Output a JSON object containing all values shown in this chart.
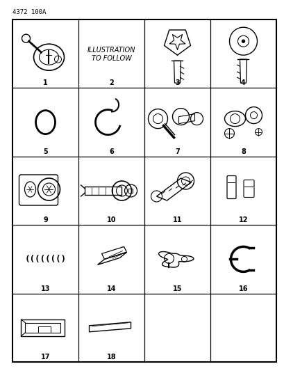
{
  "title": "4372 100A",
  "bg_color": "#ffffff",
  "fig_width": 4.1,
  "fig_height": 5.33,
  "dpi": 100,
  "placeholder_text": [
    "ILLUSTRATION",
    "TO FOLLOW"
  ],
  "cell_labels": [
    {
      "num": "1",
      "row": 0,
      "col": 0
    },
    {
      "num": "2",
      "row": 0,
      "col": 1
    },
    {
      "num": "3",
      "row": 0,
      "col": 2
    },
    {
      "num": "4",
      "row": 0,
      "col": 3
    },
    {
      "num": "5",
      "row": 1,
      "col": 0
    },
    {
      "num": "6",
      "row": 1,
      "col": 1
    },
    {
      "num": "7",
      "row": 1,
      "col": 2
    },
    {
      "num": "8",
      "row": 1,
      "col": 3
    },
    {
      "num": "9",
      "row": 2,
      "col": 0
    },
    {
      "num": "10",
      "row": 2,
      "col": 1
    },
    {
      "num": "11",
      "row": 2,
      "col": 2
    },
    {
      "num": "12",
      "row": 2,
      "col": 3
    },
    {
      "num": "13",
      "row": 3,
      "col": 0
    },
    {
      "num": "14",
      "row": 3,
      "col": 1
    },
    {
      "num": "15",
      "row": 3,
      "col": 2
    },
    {
      "num": "16",
      "row": 3,
      "col": 3
    },
    {
      "num": "17",
      "row": 4,
      "col": 0
    },
    {
      "num": "18",
      "row": 4,
      "col": 1
    }
  ]
}
